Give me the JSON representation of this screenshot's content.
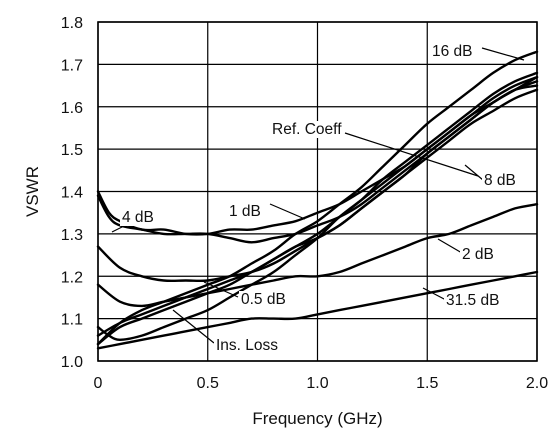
{
  "chart_data": {
    "type": "line",
    "xlabel": "Frequency (GHz)",
    "ylabel": "VSWR",
    "xlim": [
      0,
      2.0
    ],
    "ylim": [
      1.0,
      1.8
    ],
    "grid": true,
    "x_ticks": [
      "0",
      "0.5",
      "1.0",
      "1.5",
      "2.0"
    ],
    "y_ticks": [
      "1.0",
      "1.1",
      "1.2",
      "1.3",
      "1.4",
      "1.5",
      "1.6",
      "1.7",
      "1.8"
    ],
    "series": [
      {
        "name": "16 dB",
        "x": [
          0,
          0.1,
          0.2,
          0.3,
          0.4,
          0.5,
          0.6,
          0.7,
          0.8,
          0.9,
          1.0,
          1.1,
          1.2,
          1.3,
          1.4,
          1.5,
          1.6,
          1.7,
          1.8,
          1.9,
          2.0
        ],
        "y": [
          1.04,
          1.09,
          1.12,
          1.14,
          1.16,
          1.18,
          1.2,
          1.23,
          1.26,
          1.3,
          1.33,
          1.37,
          1.41,
          1.46,
          1.51,
          1.56,
          1.6,
          1.64,
          1.68,
          1.71,
          1.73
        ]
      },
      {
        "name": "Ref. Coeff",
        "x": [
          0,
          0.1,
          0.2,
          0.3,
          0.4,
          0.5,
          0.6,
          0.7,
          0.8,
          0.9,
          1.0,
          1.1,
          1.2,
          1.3,
          1.4,
          1.5,
          1.6,
          1.7,
          1.8,
          1.9,
          2.0
        ],
        "y": [
          1.04,
          1.08,
          1.1,
          1.12,
          1.14,
          1.16,
          1.18,
          1.21,
          1.24,
          1.27,
          1.3,
          1.34,
          1.38,
          1.43,
          1.47,
          1.51,
          1.55,
          1.59,
          1.63,
          1.66,
          1.68
        ]
      },
      {
        "name": "8 dB",
        "x": [
          0,
          0.1,
          0.2,
          0.3,
          0.4,
          0.5,
          0.6,
          0.7,
          0.8,
          0.9,
          1.0,
          1.1,
          1.2,
          1.3,
          1.4,
          1.5,
          1.6,
          1.7,
          1.8,
          1.9,
          2.0
        ],
        "y": [
          1.06,
          1.09,
          1.11,
          1.13,
          1.15,
          1.17,
          1.19,
          1.21,
          1.24,
          1.27,
          1.29,
          1.32,
          1.36,
          1.4,
          1.44,
          1.49,
          1.53,
          1.57,
          1.61,
          1.64,
          1.66
        ]
      },
      {
        "name": "0.5 dB",
        "x": [
          0,
          0.1,
          0.2,
          0.3,
          0.4,
          0.5,
          0.6,
          0.7,
          0.8,
          0.9,
          1.0,
          1.1,
          1.2,
          1.3,
          1.4,
          1.5,
          1.6,
          1.7,
          1.8,
          1.9,
          2.0
        ],
        "y": [
          1.27,
          1.22,
          1.2,
          1.19,
          1.19,
          1.19,
          1.2,
          1.21,
          1.23,
          1.26,
          1.29,
          1.32,
          1.36,
          1.4,
          1.44,
          1.48,
          1.52,
          1.56,
          1.59,
          1.62,
          1.64
        ]
      },
      {
        "name": "4 dB",
        "x": [
          0,
          0.05,
          0.1,
          0.2,
          0.3,
          0.4,
          0.5,
          0.6,
          0.7,
          0.8,
          0.9,
          1.0,
          1.1,
          1.2,
          1.3,
          1.4,
          1.5,
          1.6,
          1.7,
          1.8,
          1.9,
          2.0
        ],
        "y": [
          1.39,
          1.34,
          1.32,
          1.31,
          1.3,
          1.3,
          1.3,
          1.29,
          1.28,
          1.29,
          1.3,
          1.32,
          1.34,
          1.37,
          1.41,
          1.45,
          1.49,
          1.53,
          1.57,
          1.61,
          1.64,
          1.67
        ]
      },
      {
        "name": "1 dB",
        "x": [
          0,
          0.05,
          0.1,
          0.2,
          0.3,
          0.4,
          0.5,
          0.6,
          0.7,
          0.8,
          0.9,
          1.0,
          1.1,
          1.2,
          1.3,
          1.4,
          1.5,
          1.6,
          1.7,
          1.8,
          1.9,
          2.0
        ],
        "y": [
          1.4,
          1.35,
          1.33,
          1.31,
          1.31,
          1.3,
          1.3,
          1.31,
          1.31,
          1.32,
          1.33,
          1.35,
          1.37,
          1.4,
          1.43,
          1.46,
          1.5,
          1.54,
          1.58,
          1.62,
          1.65,
          1.67
        ]
      },
      {
        "name": "2 dB",
        "x": [
          0,
          0.1,
          0.2,
          0.3,
          0.4,
          0.5,
          0.6,
          0.7,
          0.8,
          0.9,
          1.0,
          1.1,
          1.2,
          1.3,
          1.4,
          1.5,
          1.6,
          1.7,
          1.8,
          1.9,
          2.0
        ],
        "y": [
          1.18,
          1.14,
          1.13,
          1.14,
          1.15,
          1.16,
          1.17,
          1.18,
          1.19,
          1.2,
          1.2,
          1.21,
          1.23,
          1.25,
          1.27,
          1.29,
          1.3,
          1.32,
          1.34,
          1.36,
          1.37
        ]
      },
      {
        "name": "31.5 dB",
        "x": [
          0,
          0.1,
          0.2,
          0.3,
          0.4,
          0.5,
          0.6,
          0.7,
          0.8,
          0.9,
          1.0,
          1.1,
          1.2,
          1.3,
          1.4,
          1.5,
          1.6,
          1.7,
          1.8,
          1.9,
          2.0
        ],
        "y": [
          1.03,
          1.04,
          1.05,
          1.06,
          1.07,
          1.08,
          1.09,
          1.1,
          1.1,
          1.1,
          1.11,
          1.12,
          1.13,
          1.14,
          1.15,
          1.16,
          1.17,
          1.18,
          1.19,
          1.2,
          1.21
        ]
      },
      {
        "name": "Ins. Loss",
        "x": [
          0,
          0.05,
          0.1,
          0.2,
          0.3,
          0.4,
          0.5,
          0.6,
          0.7,
          0.8,
          0.9,
          1.0,
          1.1,
          1.2,
          1.3,
          1.4,
          1.5,
          1.6,
          1.7,
          1.8,
          1.9,
          2.0
        ],
        "y": [
          1.08,
          1.06,
          1.05,
          1.06,
          1.08,
          1.1,
          1.12,
          1.15,
          1.18,
          1.21,
          1.25,
          1.29,
          1.34,
          1.38,
          1.42,
          1.46,
          1.5,
          1.54,
          1.58,
          1.61,
          1.64,
          1.65
        ]
      }
    ],
    "annotations": [
      {
        "text": "16 dB"
      },
      {
        "text": "Ref. Coeff"
      },
      {
        "text": "8 dB"
      },
      {
        "text": "4 dB"
      },
      {
        "text": "1 dB"
      },
      {
        "text": "2 dB"
      },
      {
        "text": "0.5 dB"
      },
      {
        "text": "31.5 dB"
      },
      {
        "text": "Ins. Loss"
      }
    ]
  }
}
